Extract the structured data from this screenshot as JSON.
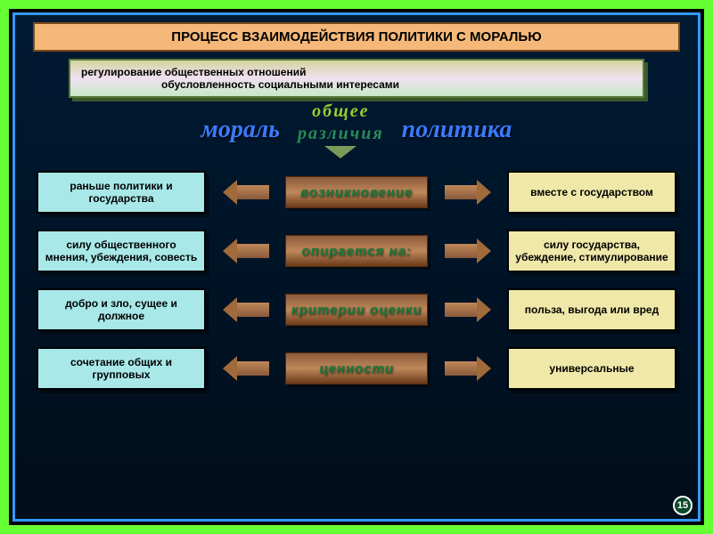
{
  "frame": {
    "outer_border": "#66ff33",
    "inner_border": "#3399ff",
    "bg": "#001a33"
  },
  "title": {
    "text": "ПРОЦЕСС ВЗАИМОДЕЙСТВИЯ ПОЛИТИКИ С МОРАЛЬЮ",
    "bg": "#f5b878",
    "border": "#7a4a1a",
    "color": "#000"
  },
  "info": {
    "line1": "регулирование общественных отношений",
    "line2": "обусловленность социальными интересами",
    "border": "#5a7a3a",
    "color": "#000"
  },
  "header": {
    "left": "мораль",
    "right": "политика",
    "left_color": "#3a7aff",
    "right_color": "#3a7aff",
    "common_label": "общее",
    "diff_label": "различия",
    "common_color": "#9acd32",
    "diff_color": "#2a8a5a"
  },
  "left_box": {
    "bg": "#a8e8e8",
    "color": "#000"
  },
  "right_box": {
    "bg": "#f0e8a8",
    "color": "#000"
  },
  "center": {
    "color": "#1a7a3a"
  },
  "rows": [
    {
      "left": "раньше политики и государства",
      "center": "возникновение",
      "right": "вместе с государством"
    },
    {
      "left": "силу общественного мнения, убеждения, совесть",
      "center": "опирается  на:",
      "right": "силу государства, убеждение, стимулирование"
    },
    {
      "left": "добро и зло, сущее и должное",
      "center": "критерии оценки",
      "right": "польза, выгода или вред"
    },
    {
      "left": "сочетание общих и групповых",
      "center": "ценности",
      "right": "универсальные"
    }
  ],
  "slide_number": "15"
}
